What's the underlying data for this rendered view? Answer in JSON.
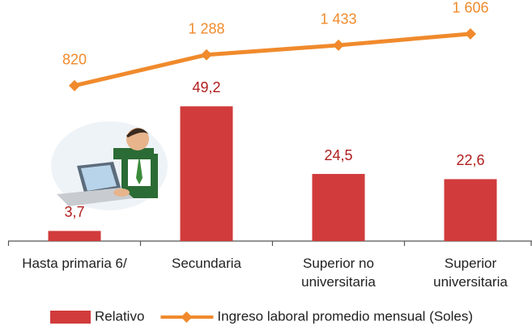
{
  "chart_data": {
    "type": "bar",
    "categories": [
      "Hasta primaria 6/",
      "Secundaria",
      "Superior no universitaria",
      "Superior universitaria"
    ],
    "series": [
      {
        "name": "Relativo",
        "type": "bar",
        "color": "#d13b3b",
        "label_color": "#b01e1e",
        "values": [
          3.7,
          49.2,
          24.5,
          22.6
        ],
        "value_labels": [
          "3,7",
          "49,2",
          "24,5",
          "22,6"
        ]
      },
      {
        "name": "Ingreso laboral promedio mensual (Soles)",
        "type": "line",
        "axis": "y2",
        "color": "#f08a2c",
        "label_color": "#f08a2c",
        "values": [
          820,
          1288,
          1433,
          1606
        ],
        "value_labels": [
          "820",
          "1 288",
          "1 433",
          "1 606"
        ]
      }
    ],
    "ylim": [
      0,
      88
    ],
    "y2lim": [
      -1540,
      2120
    ],
    "legend": "bottom"
  }
}
